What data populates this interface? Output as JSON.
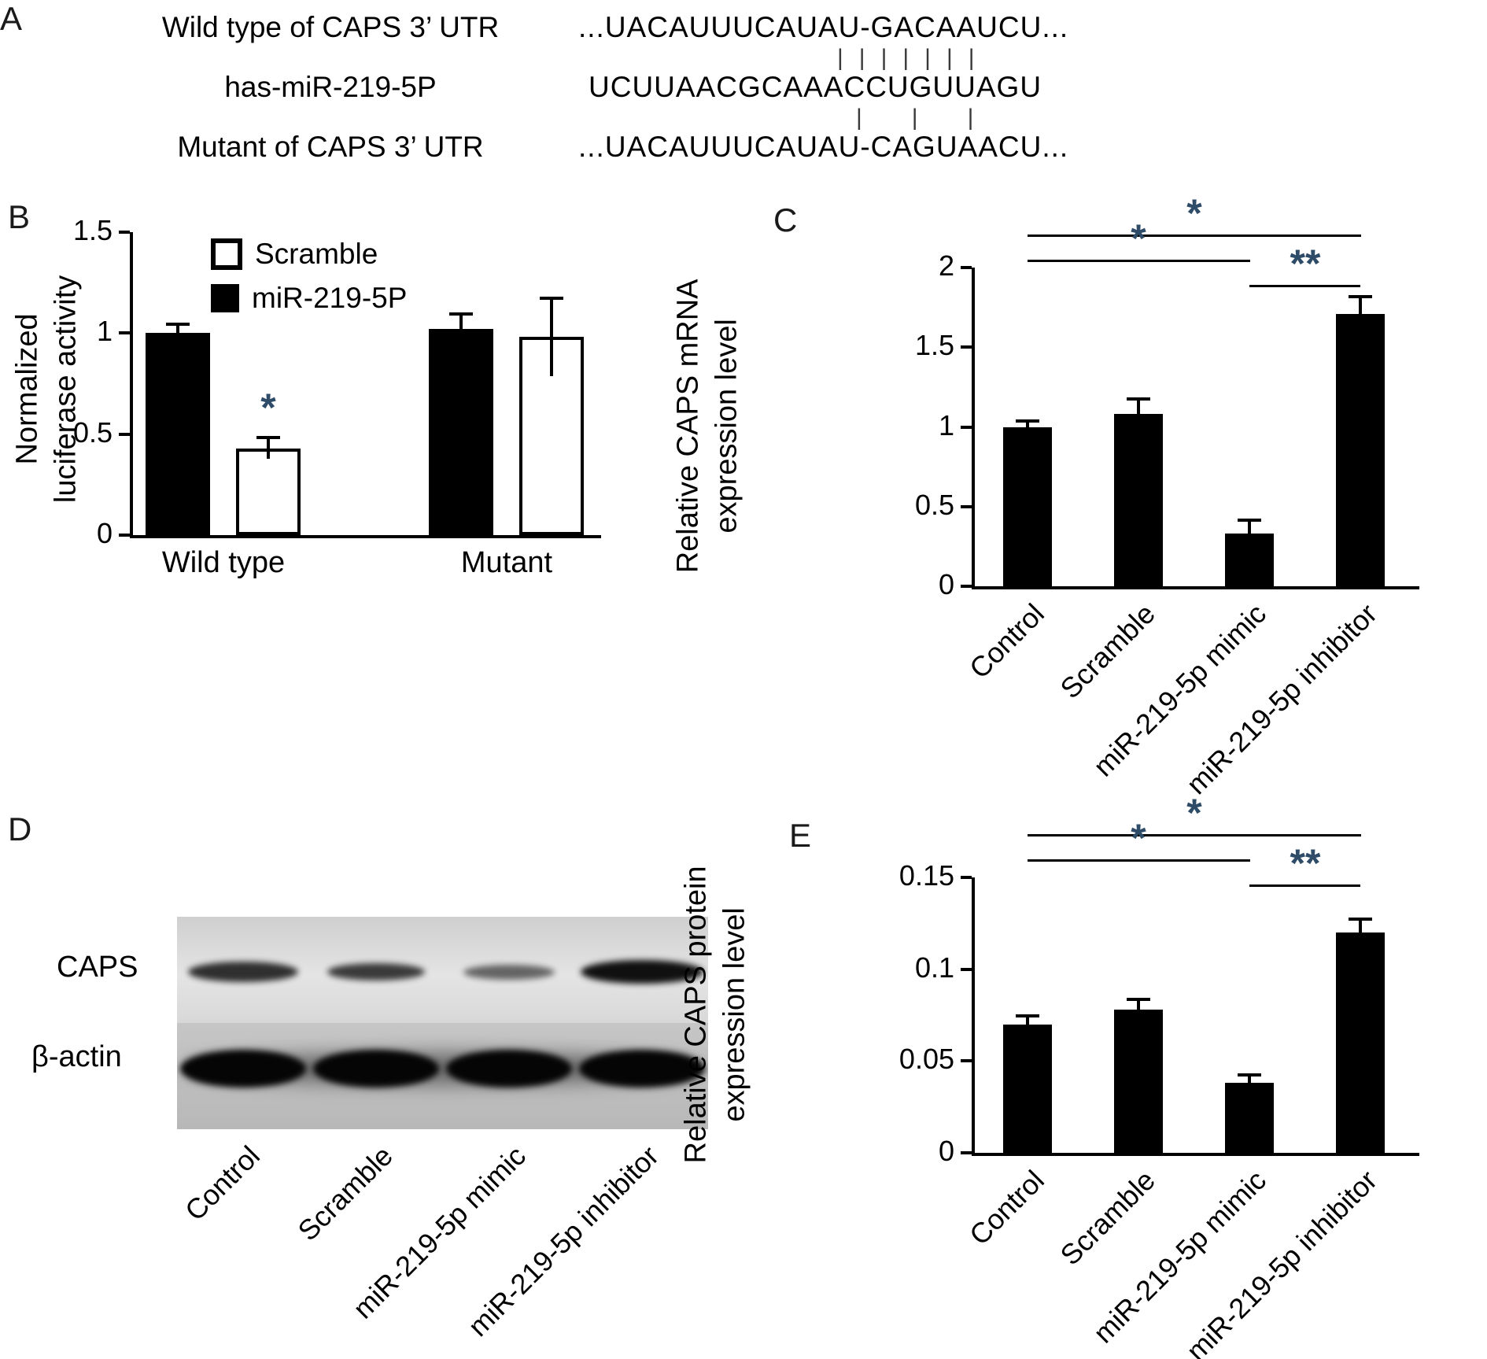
{
  "colors": {
    "bar": "#000000",
    "axis": "#000000",
    "star": "#2e4b68"
  },
  "panel_a": {
    "label": "A",
    "rows": [
      {
        "name": "Wild type of CAPS 3’ UTR",
        "sequence": "...UACAUUUCAUAU-GACAAUCU..."
      },
      {
        "name": "has-miR-219-5P",
        "sequence": "UCUUAACGCAAACCUGUUAGU"
      },
      {
        "name": "Mutant of CAPS 3’ UTR",
        "sequence": "...UACAUUUCAUAU-CAGUAACU..."
      }
    ],
    "match_marks_top": "|||||||",
    "match_marks_bottom": "|||"
  },
  "panel_b": {
    "label": "B"
  },
  "panel_c": {
    "label": "C"
  },
  "panel_d": {
    "label": "D",
    "band_labels": [
      "CAPS",
      "β-actin"
    ],
    "lane_labels": [
      "Control",
      "Scramble",
      "miR-219-5p mimic",
      "miR-219-5p inhibitor"
    ],
    "caps_band_intensity": [
      0.85,
      0.8,
      0.6,
      1.0
    ]
  },
  "panel_e": {
    "label": "E"
  },
  "chart_data": [
    {
      "id": "luciferase",
      "type": "bar",
      "panel": "B",
      "ylabel": "Normalized luciferase activity",
      "ylabel_lines": [
        "Normalized",
        "luciferase activity"
      ],
      "ylim": [
        0,
        1.5
      ],
      "yticks": [
        0,
        0.5,
        1,
        1.5
      ],
      "ytick_labels": [
        "0",
        "0.5",
        "1",
        "1.5"
      ],
      "categories": [
        "Wild type",
        "Mutant"
      ],
      "legend": [
        {
          "label": "Scramble",
          "fill": "white"
        },
        {
          "label": "miR-219-5P",
          "fill": "black"
        }
      ],
      "series": [
        {
          "name": "miR-219-5P",
          "fill": "black",
          "values": [
            1.0,
            1.02
          ],
          "errors": [
            0.04,
            0.07
          ]
        },
        {
          "name": "Scramble",
          "fill": "white",
          "values": [
            0.43,
            0.98
          ],
          "errors": [
            0.05,
            0.19
          ]
        }
      ],
      "annotations": [
        {
          "text": "*",
          "category_index": 0,
          "series_index": 1
        }
      ]
    },
    {
      "id": "caps-mrna",
      "type": "bar",
      "panel": "C",
      "ylabel": "Relative CAPS mRNA expression level",
      "ylabel_lines": [
        "Relative CAPS mRNA",
        "expression level"
      ],
      "ylim": [
        0,
        2
      ],
      "yticks": [
        0,
        0.5,
        1,
        1.5,
        2
      ],
      "ytick_labels": [
        "0",
        "0.5",
        "1",
        "1.5",
        "2"
      ],
      "categories": [
        "Control",
        "Scramble",
        "miR-219-5p mimic",
        "miR-219-5p inhibitor"
      ],
      "values": [
        1.0,
        1.08,
        0.33,
        1.71
      ],
      "errors": [
        0.03,
        0.09,
        0.08,
        0.1
      ],
      "significance": [
        {
          "from": 0,
          "to": 3,
          "label": "*"
        },
        {
          "from": 0,
          "to": 2,
          "label": "*"
        },
        {
          "from": 2,
          "to": 3,
          "label": "**"
        }
      ]
    },
    {
      "id": "caps-protein",
      "type": "bar",
      "panel": "E",
      "ylabel": "Relative CAPS protein expression level",
      "ylabel_lines": [
        "Relative CAPS protein",
        "expression level"
      ],
      "ylim": [
        0,
        0.15
      ],
      "yticks": [
        0,
        0.05,
        0.1,
        0.15
      ],
      "ytick_labels": [
        "0",
        "0.05",
        "0.1",
        "0.15"
      ],
      "categories": [
        "Control",
        "Scramble",
        "miR-219-5p mimic",
        "miR-219-5p inhibitor"
      ],
      "values": [
        0.07,
        0.078,
        0.038,
        0.12
      ],
      "errors": [
        0.004,
        0.005,
        0.004,
        0.007
      ],
      "significance": [
        {
          "from": 0,
          "to": 3,
          "label": "*"
        },
        {
          "from": 0,
          "to": 2,
          "label": "*"
        },
        {
          "from": 2,
          "to": 3,
          "label": "**"
        }
      ]
    }
  ]
}
